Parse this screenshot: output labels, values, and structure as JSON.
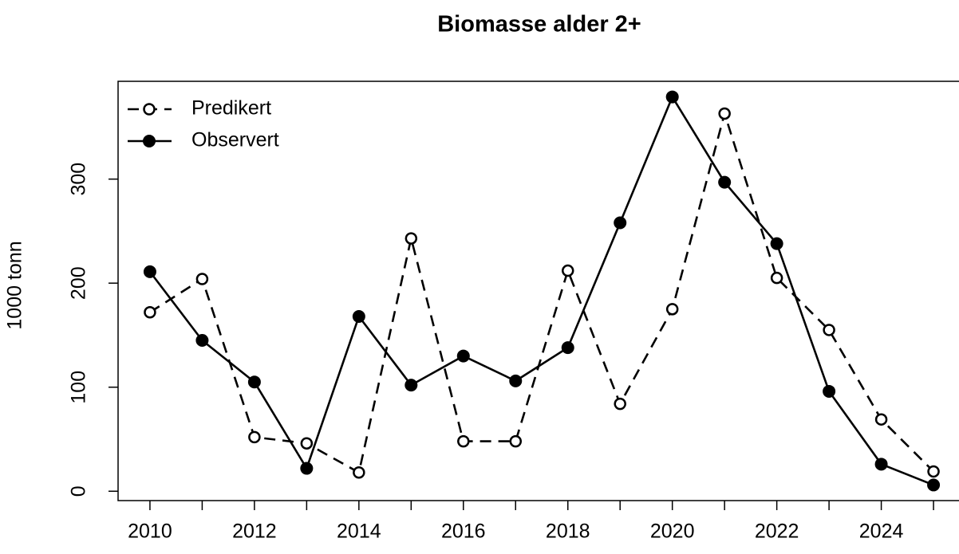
{
  "chart_data": {
    "type": "line",
    "title": "Biomasse alder 2+",
    "y_label": "1000 tonn",
    "x": [
      2010,
      2011,
      2012,
      2013,
      2014,
      2015,
      2016,
      2017,
      2018,
      2019,
      2020,
      2021,
      2022,
      2023,
      2024,
      2025
    ],
    "series": [
      {
        "name": "Predikert",
        "color": "#000000",
        "marker": "open",
        "dashed": true,
        "values": [
          172,
          204,
          52,
          46,
          18,
          243,
          48,
          48,
          212,
          84,
          175,
          363,
          205,
          155,
          69,
          19
        ]
      },
      {
        "name": "Observert",
        "color": "#000000",
        "marker": "filled",
        "dashed": false,
        "values": [
          211,
          145,
          105,
          22,
          168,
          102,
          130,
          106,
          138,
          258,
          379,
          297,
          238,
          96,
          26,
          6
        ]
      }
    ],
    "xlim": [
      2009.39,
      2025.61
    ],
    "xticks": [
      2010,
      2012,
      2014,
      2016,
      2018,
      2020,
      2022,
      2024
    ],
    "xminor": [
      2011,
      2013,
      2015,
      2017,
      2019,
      2021,
      2023,
      2025
    ],
    "ylim": [
      -9,
      394
    ],
    "yticks": [
      0,
      100,
      200,
      300
    ],
    "legend": "top-left",
    "grid": false
  }
}
